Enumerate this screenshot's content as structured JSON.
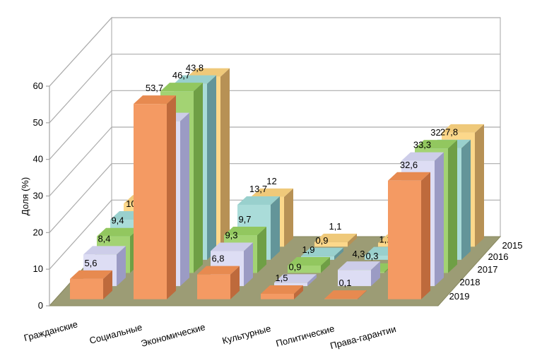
{
  "chart_data": {
    "type": "bar",
    "projection": "3d",
    "title": "",
    "ylabel": "Доля (%)",
    "y_ticks": [
      0,
      10,
      20,
      30,
      40,
      50,
      60
    ],
    "ylim": [
      0,
      60
    ],
    "grid": true,
    "legend_position": "none",
    "categories": [
      "Гражданские",
      "Социальные",
      "Экономические",
      "Культурные",
      "Политические",
      "Права-гарантии"
    ],
    "depth_axis_labels_front_to_back": [
      "2019",
      "2018",
      "2017",
      "2016",
      "2015"
    ],
    "series": [
      {
        "name": "2019",
        "colors": {
          "front": "#F49A63",
          "top": "#E78A50",
          "side": "#BE6A3C"
        },
        "values": [
          5.6,
          53.7,
          6.8,
          1.5,
          0.1,
          32.6
        ],
        "labels": [
          "5,6",
          "53,7",
          "6,8",
          "1,5",
          "0,1",
          "32,6"
        ]
      },
      {
        "name": "2018",
        "colors": {
          "front": "#DDDDF4",
          "top": "#CDCDE9",
          "side": "#9B9BC4"
        },
        "values": [
          8.4,
          43.8,
          9.3,
          0.9,
          4.3,
          33.3
        ],
        "labels": [
          "8,4",
          null,
          "9,3",
          "0,9",
          "4,3",
          "33,3"
        ]
      },
      {
        "name": "2017",
        "colors": {
          "front": "#A3D373",
          "top": "#92C75F",
          "side": "#6F9F45"
        },
        "values": [
          9.4,
          46.7,
          9.7,
          1.9,
          0.3,
          32
        ],
        "labels": [
          "9,4",
          "46,7",
          "9,7",
          "1,9",
          "0,3",
          "32"
        ]
      },
      {
        "name": "2016",
        "colors": {
          "front": "#AADCD9",
          "top": "#99D0CD",
          "side": "#639599"
        },
        "values": [
          10,
          43.8,
          13.7,
          0.9,
          1.1,
          27.8
        ],
        "labels": [
          "10",
          "43,8",
          "13,7",
          "0,9",
          "1,1",
          "27,8"
        ]
      },
      {
        "name": "2015",
        "colors": {
          "front": "#FCD88B",
          "top": "#EFC97A",
          "side": "#B79155"
        },
        "values": [
          10.4,
          41,
          12,
          1.1,
          0.9,
          27.5
        ],
        "labels": [
          null,
          null,
          "12",
          "1,1",
          null,
          null
        ],
        "note": "null labels are occluded in the original; those values estimated from bar heights"
      }
    ],
    "scene_colors": {
      "floor": "#9C9C75",
      "floor_edge": "#88885F",
      "wall": "#FFFFFF",
      "wall_border": "#A5A5A5",
      "gridline": "#ACACAC",
      "text": "#000000"
    }
  }
}
